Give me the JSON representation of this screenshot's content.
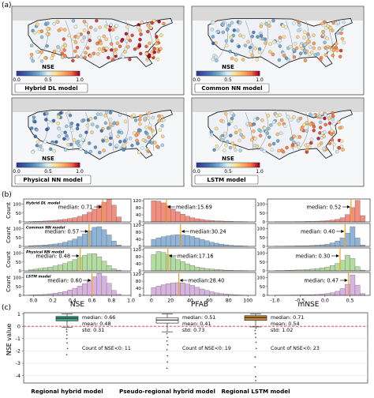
{
  "panels": {
    "a": "(a)",
    "b": "(b)",
    "c": "(c)"
  },
  "colors": {
    "hist": [
      "#f28e80",
      "#8fb4d8",
      "#b3dca0",
      "#d7b4e0"
    ],
    "box": [
      "#3aaa88",
      "#ffffff",
      "#c68a3a"
    ],
    "median_line": "#f4a020",
    "zero_line": "#e03030"
  },
  "maps": [
    {
      "label": "Hybrid DL model",
      "colorbar_title": "NSE"
    },
    {
      "label": "Common NN model",
      "colorbar_title": "NSE"
    },
    {
      "label": "Physical NN model",
      "colorbar_title": "NSE"
    },
    {
      "label": "LSTM model",
      "colorbar_title": "NSE"
    }
  ],
  "colorbar_ticks": [
    "0.0",
    "0.5",
    "1.0"
  ],
  "chart_data": [
    {
      "type": "bar",
      "title": "",
      "xlabel": "NSE",
      "ylabel": "Count",
      "xlim": [
        -0.1,
        1.0
      ],
      "x_ticks": [
        "0.0",
        "0.2",
        "0.4",
        "0.6",
        "0.8",
        "1.0"
      ],
      "y_ticks": [
        "0",
        "50",
        "100"
      ],
      "bin_edges": [
        -0.05,
        0.0,
        0.05,
        0.1,
        0.15,
        0.2,
        0.25,
        0.3,
        0.35,
        0.4,
        0.45,
        0.5,
        0.55,
        0.6,
        0.65,
        0.7,
        0.75,
        0.8,
        0.85,
        0.9
      ],
      "series": [
        {
          "name": "Hybrid DL model",
          "ylim": [
            0,
            130
          ],
          "median": 0.71,
          "median_label": "median: 0.71",
          "counts": [
            2,
            3,
            4,
            5,
            7,
            9,
            12,
            15,
            19,
            24,
            32,
            42,
            55,
            72,
            95,
            112,
            128,
            95,
            28
          ]
        },
        {
          "name": "Common NN model",
          "ylim": [
            0,
            130
          ],
          "median": 0.57,
          "median_label": "median: 0.57",
          "counts": [
            3,
            5,
            6,
            8,
            11,
            14,
            18,
            24,
            32,
            42,
            55,
            70,
            88,
            108,
            112,
            95,
            65,
            30,
            8
          ]
        },
        {
          "name": "Physical NN model",
          "ylim": [
            0,
            130
          ],
          "median": 0.48,
          "median_label": "median: 0.48",
          "counts": [
            6,
            10,
            14,
            18,
            22,
            28,
            34,
            42,
            52,
            64,
            76,
            88,
            96,
            98,
            80,
            55,
            30,
            12,
            4
          ]
        },
        {
          "name": "LSTM model",
          "ylim": [
            0,
            130
          ],
          "median": 0.6,
          "median_label": "median: 0.60",
          "counts": [
            2,
            3,
            4,
            6,
            9,
            12,
            16,
            22,
            30,
            40,
            52,
            66,
            84,
            105,
            125,
            108,
            68,
            28,
            6
          ]
        }
      ]
    },
    {
      "type": "bar",
      "title": "",
      "xlabel": "PFAB",
      "ylabel": "",
      "xlim": [
        -8,
        108
      ],
      "x_ticks": [
        "0",
        "20",
        "40",
        "60",
        "80",
        "100"
      ],
      "y_ticks": [
        "0",
        "40",
        "80",
        "120"
      ],
      "bin_edges": [
        0,
        5,
        10,
        15,
        20,
        25,
        30,
        35,
        40,
        45,
        50,
        55,
        60,
        65,
        70,
        75,
        80,
        85,
        90,
        95,
        100
      ],
      "series": [
        {
          "name": "Hybrid DL model",
          "ylim": [
            0,
            130
          ],
          "median": 15.69,
          "median_label": "median:15.69",
          "counts": [
            120,
            118,
            108,
            92,
            74,
            58,
            44,
            32,
            24,
            18,
            14,
            10,
            8,
            6,
            5,
            4,
            3,
            2,
            2,
            1
          ]
        },
        {
          "name": "Common NN model",
          "ylim": [
            0,
            130
          ],
          "median": 30.24,
          "median_label": "median:30.24",
          "counts": [
            40,
            48,
            55,
            60,
            64,
            66,
            65,
            62,
            56,
            48,
            40,
            32,
            24,
            18,
            13,
            9,
            6,
            4,
            3,
            2
          ]
        },
        {
          "name": "Physical NN model",
          "ylim": [
            0,
            130
          ],
          "median": 17.16,
          "median_label": "median:17.16",
          "counts": [
            92,
            110,
            104,
            92,
            78,
            64,
            52,
            40,
            30,
            22,
            17,
            13,
            10,
            8,
            6,
            4,
            3,
            2,
            2,
            1
          ]
        },
        {
          "name": "LSTM model",
          "ylim": [
            0,
            130
          ],
          "median": 28.4,
          "median_label": "median:28.40",
          "counts": [
            44,
            52,
            60,
            66,
            70,
            72,
            70,
            64,
            56,
            46,
            36,
            28,
            20,
            14,
            10,
            7,
            5,
            3,
            2,
            1
          ]
        }
      ]
    },
    {
      "type": "bar",
      "title": "",
      "xlabel": "mNSE",
      "ylabel": "",
      "xlim": [
        -1.15,
        0.9
      ],
      "x_ticks": [
        "-1.0",
        "-0.5",
        "0.0",
        "0.5"
      ],
      "y_ticks": [
        "0",
        "50",
        "100"
      ],
      "bin_edges": [
        -1.0,
        -0.9,
        -0.8,
        -0.7,
        -0.6,
        -0.5,
        -0.4,
        -0.3,
        -0.2,
        -0.1,
        0.0,
        0.1,
        0.2,
        0.3,
        0.4,
        0.5,
        0.6,
        0.7,
        0.8
      ],
      "series": [
        {
          "name": "Hybrid DL model",
          "ylim": [
            0,
            130
          ],
          "median": 0.52,
          "median_label": "median: 0.52",
          "counts": [
            1,
            1,
            1,
            1,
            2,
            2,
            3,
            3,
            4,
            5,
            7,
            10,
            15,
            24,
            42,
            82,
            122,
            36
          ]
        },
        {
          "name": "Common NN model",
          "ylim": [
            0,
            130
          ],
          "median": 0.4,
          "median_label": "median: 0.40",
          "counts": [
            1,
            1,
            2,
            2,
            3,
            3,
            4,
            5,
            7,
            9,
            13,
            20,
            30,
            48,
            75,
            112,
            48,
            8
          ]
        },
        {
          "name": "Physical NN model",
          "ylim": [
            0,
            130
          ],
          "median": 0.3,
          "median_label": "median: 0.30",
          "counts": [
            2,
            2,
            3,
            4,
            5,
            6,
            8,
            10,
            13,
            17,
            22,
            30,
            42,
            60,
            88,
            70,
            24,
            4
          ]
        },
        {
          "name": "LSTM model",
          "ylim": [
            0,
            130
          ],
          "median": 0.47,
          "median_label": "median: 0.47",
          "counts": [
            1,
            1,
            1,
            2,
            2,
            3,
            3,
            4,
            5,
            7,
            10,
            15,
            23,
            38,
            62,
            116,
            58,
            10
          ]
        }
      ]
    },
    {
      "type": "box",
      "title": "",
      "xlabel": "",
      "ylabel": "NSE value",
      "ylim": [
        -4.6,
        1.1
      ],
      "y_ticks": [
        "1",
        "0",
        "-1",
        "-2",
        "-3",
        "-4"
      ],
      "grid": true,
      "categories": [
        "Regional hybrid model",
        "Pseudo-regional hybrid model",
        "Regional LSTM model"
      ],
      "boxes": [
        {
          "q1": 0.44,
          "median": 0.66,
          "q3": 0.8,
          "whisker_low": -0.1,
          "whisker_high": 1.0,
          "outliers": [
            -0.25,
            -0.45,
            -0.7,
            -1.0,
            -1.35,
            -1.8,
            -2.3
          ],
          "stats": [
            "median: 0.66",
            "mean: 0.48",
            "std: 0.31"
          ],
          "count_label": "Count of NSE<0: 11"
        },
        {
          "q1": 0.26,
          "median": 0.51,
          "q3": 0.7,
          "whisker_low": -0.45,
          "whisker_high": 1.0,
          "outliers": [
            -0.6,
            -0.9,
            -1.2,
            -1.5,
            -1.9,
            -2.4,
            -2.9,
            -3.4
          ],
          "stats": [
            "median: 0.51",
            "mean: 0.41",
            "std: 0.73"
          ],
          "count_label": "Count of NSE<0: 19"
        },
        {
          "q1": 0.48,
          "median": 0.71,
          "q3": 0.86,
          "whisker_low": -0.05,
          "whisker_high": 1.0,
          "outliers": [
            -0.15,
            -0.35,
            -0.6,
            -0.9,
            -1.3,
            -1.8,
            -2.5,
            -3.3,
            -4.1,
            -4.4
          ],
          "stats": [
            "median: 0.71",
            "mean: 0.54",
            "std: 1.02"
          ],
          "count_label": "Count of NSE<0: 23"
        }
      ]
    }
  ]
}
